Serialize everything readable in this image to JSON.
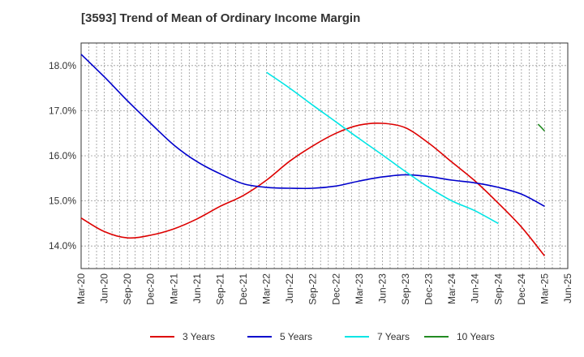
{
  "chart_data": {
    "type": "line",
    "title": "[3593]  Trend of Mean of Ordinary Income Margin",
    "xlabel": "",
    "ylabel": "",
    "x": [
      "Mar-20",
      "Jun-20",
      "Sep-20",
      "Dec-20",
      "Mar-21",
      "Jun-21",
      "Sep-21",
      "Dec-21",
      "Mar-22",
      "Jun-22",
      "Sep-22",
      "Dec-22",
      "Mar-23",
      "Jun-23",
      "Sep-23",
      "Dec-23",
      "Mar-24",
      "Jun-24",
      "Sep-24",
      "Dec-24",
      "Mar-25",
      "Jun-25"
    ],
    "x_tick_labels": [
      "Mar-20",
      "Jun-20",
      "Sep-20",
      "Dec-20",
      "Mar-21",
      "Jun-21",
      "Sep-21",
      "Dec-21",
      "Mar-22",
      "Jun-22",
      "Sep-22",
      "Dec-22",
      "Mar-23",
      "Jun-23",
      "Sep-23",
      "Dec-23",
      "Mar-24",
      "Jun-24",
      "Sep-24",
      "Dec-24",
      "Mar-25",
      "Jun-25"
    ],
    "y_ticks": [
      14.0,
      15.0,
      16.0,
      17.0,
      18.0
    ],
    "y_tick_labels": [
      "14.0%",
      "15.0%",
      "16.0%",
      "17.0%",
      "18.0%"
    ],
    "ylim": [
      13.5,
      18.5
    ],
    "grid": true,
    "legend_position": "bottom",
    "series": [
      {
        "name": "3 Years",
        "color": "#dd0000",
        "values": [
          14.62,
          14.32,
          14.18,
          14.24,
          14.38,
          14.6,
          14.88,
          15.12,
          15.46,
          15.88,
          16.22,
          16.5,
          16.68,
          16.72,
          16.62,
          16.28,
          15.86,
          15.44,
          14.95,
          14.42,
          13.78,
          null
        ]
      },
      {
        "name": "5 Years",
        "color": "#0000cc",
        "values": [
          18.25,
          17.75,
          17.22,
          16.72,
          16.24,
          15.87,
          15.6,
          15.38,
          15.3,
          15.28,
          15.28,
          15.33,
          15.44,
          15.53,
          15.58,
          15.54,
          15.46,
          15.4,
          15.3,
          15.15,
          14.88,
          null
        ]
      },
      {
        "name": "7 Years",
        "color": "#00e5e5",
        "values": [
          null,
          null,
          null,
          null,
          null,
          null,
          null,
          null,
          17.85,
          17.5,
          17.12,
          16.75,
          16.38,
          16.02,
          15.65,
          15.3,
          15.0,
          14.78,
          14.5,
          null,
          null,
          null
        ]
      },
      {
        "name": "10 Years",
        "color": "#228b22",
        "values": [
          null,
          null,
          null,
          null,
          null,
          null,
          null,
          null,
          null,
          null,
          null,
          null,
          null,
          null,
          null,
          null,
          null,
          null,
          null,
          null,
          16.55,
          null
        ]
      }
    ],
    "ten_year_start": 16.7
  }
}
